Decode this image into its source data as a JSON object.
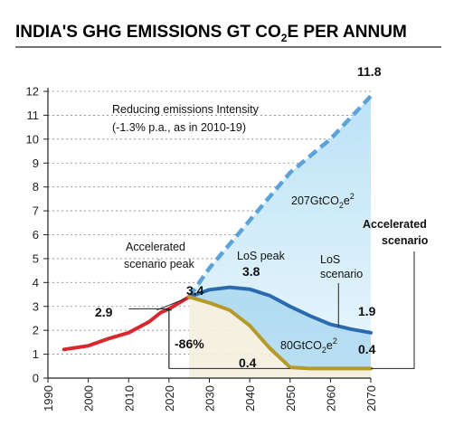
{
  "chart_data": {
    "type": "line",
    "title": "INDIA'S GHG EMISSIONS GT CO",
    "title_sub": "2",
    "title_suffix": "E PER ANNUM",
    "xlim": [
      1990,
      2070
    ],
    "ylim": [
      0,
      12
    ],
    "x_ticks": [
      1990,
      2000,
      2010,
      2020,
      2030,
      2040,
      2050,
      2060,
      2070
    ],
    "y_ticks": [
      0,
      1,
      2,
      3,
      4,
      5,
      6,
      7,
      8,
      9,
      10,
      11,
      12
    ],
    "grid": true,
    "series": [
      {
        "key": "historical",
        "color": "#d9272e",
        "style": "solid",
        "points": [
          [
            1994,
            1.2
          ],
          [
            2000,
            1.35
          ],
          [
            2005,
            1.65
          ],
          [
            2010,
            1.9
          ],
          [
            2015,
            2.35
          ],
          [
            2018,
            2.75
          ],
          [
            2020,
            2.9
          ],
          [
            2022,
            3.1
          ],
          [
            2025,
            3.4
          ]
        ]
      },
      {
        "key": "intensity",
        "color": "#5aa2d8",
        "style": "dashed",
        "points": [
          [
            2025,
            3.4
          ],
          [
            2030,
            4.6
          ],
          [
            2040,
            6.6
          ],
          [
            2050,
            8.6
          ],
          [
            2060,
            10.0
          ],
          [
            2070,
            11.8
          ]
        ]
      },
      {
        "key": "los",
        "color": "#2a6aae",
        "style": "solid",
        "points": [
          [
            2025,
            3.4
          ],
          [
            2030,
            3.7
          ],
          [
            2035,
            3.8
          ],
          [
            2040,
            3.72
          ],
          [
            2045,
            3.45
          ],
          [
            2050,
            3.0
          ],
          [
            2055,
            2.6
          ],
          [
            2060,
            2.25
          ],
          [
            2065,
            2.05
          ],
          [
            2070,
            1.9
          ]
        ]
      },
      {
        "key": "accelerated",
        "color": "#b59a2a",
        "style": "solid",
        "points": [
          [
            2025,
            3.4
          ],
          [
            2030,
            3.15
          ],
          [
            2035,
            2.85
          ],
          [
            2040,
            2.2
          ],
          [
            2045,
            1.25
          ],
          [
            2050,
            0.45
          ],
          [
            2055,
            0.4
          ],
          [
            2060,
            0.4
          ],
          [
            2070,
            0.4
          ]
        ]
      }
    ],
    "annotations": {
      "intensity_line1": "Reducing emissions Intensity",
      "intensity_line2": "(-1.3% p.a., as in 2010-19)",
      "end_intensity": "11.8",
      "budget_intensity": "207GtCO",
      "budget_intensity_sub": "2",
      "budget_intensity_suffix": "e",
      "budget_intensity_sup": "2",
      "acc_peak_line1": "Accelerated",
      "acc_peak_line2": "scenario peak",
      "peak_value": "3.4",
      "val_2020": "2.9",
      "drop_pct": "-86%",
      "los_peak_label": "LoS peak",
      "los_peak_value": "3.8",
      "los_label_line1": "LoS",
      "los_label_line2": "scenario",
      "end_los": "1.9",
      "acc_label_line1": "Accelerated",
      "acc_label_line2": "scenario",
      "end_acc": "0.4",
      "budget_acc": "80GtCO",
      "budget_acc_sub": "2",
      "budget_acc_suffix": "e",
      "budget_acc_sup": "2",
      "acc_floor": "0.4"
    }
  }
}
